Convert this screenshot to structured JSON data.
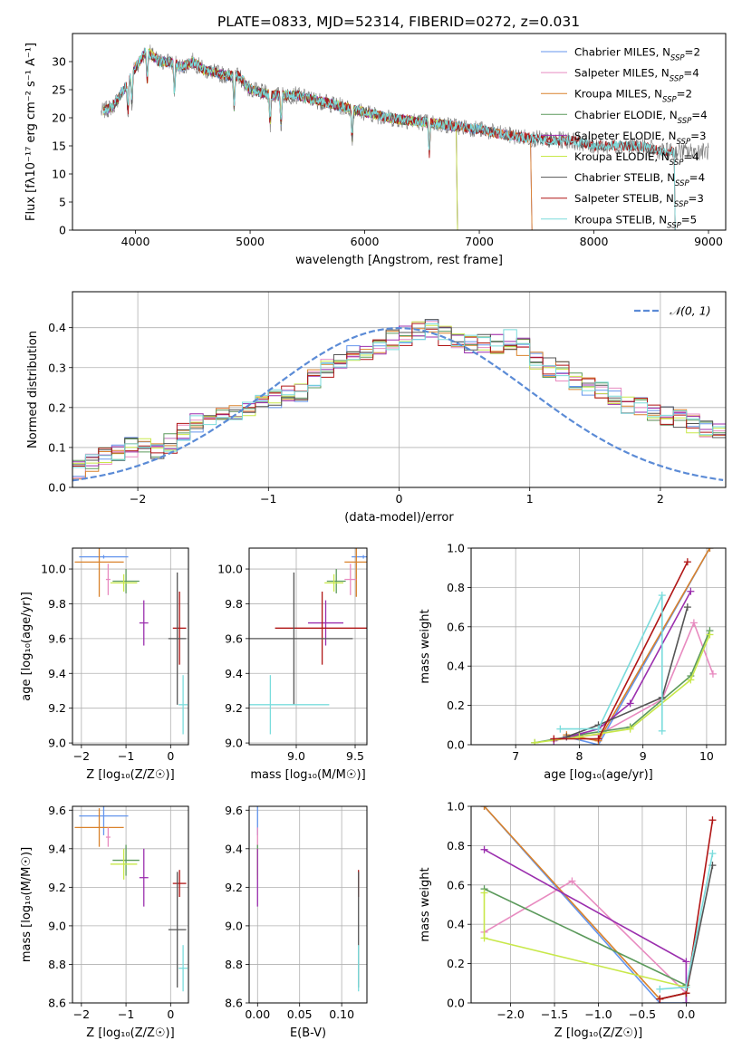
{
  "figure": {
    "title": "PLATE=0833, MJD=52314, FIBERID=0272, z=0.031"
  },
  "colors": {
    "Chabrier MILES": "#6495ed",
    "Salpeter MILES": "#e88bc0",
    "Kroupa MILES": "#d9822b",
    "Chabrier ELODIE": "#5c9a5c",
    "Salpeter ELODIE": "#9b2fae",
    "Kroupa ELODIE": "#c8e84a",
    "Chabrier STELIB": "#555555",
    "Salpeter STELIB": "#b01515",
    "Kroupa STELIB": "#7adcdc",
    "gaussian": "#5b8bd6"
  },
  "chart_data": [
    {
      "id": "spectrum",
      "type": "line",
      "xlabel": "wavelength [Angstrom, rest frame]",
      "ylabel": "Flux [fλ10⁻¹⁷ erg cm⁻² s⁻¹ A⁻¹]",
      "xlim": [
        3450,
        9150
      ],
      "ylim": [
        0,
        35
      ],
      "xticks": [
        4000,
        5000,
        6000,
        7000,
        8000,
        9000
      ],
      "yticks": [
        0,
        5,
        10,
        15,
        20,
        25,
        30
      ],
      "grid": false,
      "legend_position": "top-right",
      "observed": {
        "x": [
          3700,
          3800,
          3900,
          4000,
          4100,
          4200,
          4300,
          4400,
          4500,
          4600,
          4700,
          4800,
          4900,
          5000,
          5200,
          5400,
          5600,
          5800,
          6000,
          6200,
          6400,
          6600,
          6800,
          7000,
          7200,
          7400,
          7600,
          7800,
          8000,
          8200,
          8400,
          8600,
          8800,
          9000
        ],
        "y": [
          21,
          22,
          25,
          29,
          32,
          30,
          30,
          29,
          30,
          28.5,
          28,
          27.5,
          27.5,
          25,
          24,
          24,
          23,
          22,
          21,
          20,
          19.5,
          19,
          18.5,
          18,
          17,
          16.5,
          16,
          16,
          15,
          15,
          15,
          14,
          14,
          14
        ]
      },
      "series": [
        {
          "name": "Chabrier MILES",
          "nssp": "2",
          "end_x": 7450
        },
        {
          "name": "Salpeter MILES",
          "nssp": "4",
          "end_x": 7450
        },
        {
          "name": "Kroupa MILES",
          "nssp": "2",
          "end_x": 7450
        },
        {
          "name": "Chabrier ELODIE",
          "nssp": "4",
          "end_x": 6800
        },
        {
          "name": "Salpeter ELODIE",
          "nssp": "3",
          "end_x": 6800
        },
        {
          "name": "Kroupa ELODIE",
          "nssp": "4",
          "end_x": 6800
        },
        {
          "name": "Chabrier STELIB",
          "nssp": "4",
          "end_x": 8700
        },
        {
          "name": "Salpeter STELIB",
          "nssp": "3",
          "end_x": 8700
        },
        {
          "name": "Kroupa STELIB",
          "nssp": "5",
          "end_x": 8700
        }
      ]
    },
    {
      "id": "histogram",
      "type": "step",
      "xlabel": "(data-model)/error",
      "ylabel": "Normed distribution",
      "xlim": [
        -2.5,
        2.5
      ],
      "ylim": [
        0,
        0.49
      ],
      "xticks": [
        -2,
        -1,
        0,
        1,
        2
      ],
      "yticks": [
        0.0,
        0.1,
        0.2,
        0.3,
        0.4
      ],
      "grid": true,
      "legend_position": "top-right",
      "gaussian_label": "𝒩(0, 1)",
      "bin_edges_start": -2.5,
      "bin_width": 0.1,
      "mean_profile": [
        0.045,
        0.06,
        0.08,
        0.09,
        0.1,
        0.1,
        0.095,
        0.11,
        0.14,
        0.16,
        0.17,
        0.18,
        0.19,
        0.2,
        0.21,
        0.22,
        0.23,
        0.24,
        0.27,
        0.3,
        0.31,
        0.33,
        0.34,
        0.35,
        0.37,
        0.38,
        0.39,
        0.4,
        0.38,
        0.37,
        0.36,
        0.36,
        0.36,
        0.37,
        0.35,
        0.32,
        0.3,
        0.29,
        0.27,
        0.25,
        0.24,
        0.23,
        0.21,
        0.2,
        0.19,
        0.18,
        0.17,
        0.16,
        0.15,
        0.14,
        0.13,
        0.12,
        0.1,
        0.09,
        0.085,
        0.08,
        0.075,
        0.07,
        0.065,
        0.06,
        0.055,
        0.05,
        0.045,
        0.045,
        0.04,
        0.04,
        0.04,
        0.035,
        0.035,
        0.03,
        0.03,
        0.03,
        0.025,
        0.025,
        0.02,
        0.02,
        0.02,
        0.02,
        0.02,
        0.02
      ]
    },
    {
      "id": "age-vs-z",
      "type": "errorbar",
      "xlabel": "Z [log₁₀(Z/Z☉)]",
      "ylabel": "age  [log₁₀(age/yr)]",
      "xlim": [
        -2.2,
        0.4
      ],
      "ylim": [
        8.99,
        10.12
      ],
      "xticks": [
        -2,
        -1,
        0
      ],
      "yticks": [
        9.0,
        9.2,
        9.4,
        9.6,
        9.8,
        10.0
      ],
      "grid": true,
      "points": [
        {
          "series": "Chabrier MILES",
          "x": -1.5,
          "xerr": 0.55,
          "y": 10.07,
          "yerr": 0.01
        },
        {
          "series": "Kroupa MILES",
          "x": -1.6,
          "xerr": 0.55,
          "y": 10.04,
          "yerr": 0.2
        },
        {
          "series": "Salpeter MILES",
          "x": -1.4,
          "xerr": 0.05,
          "y": 9.94,
          "yerr": 0.09
        },
        {
          "series": "Chabrier ELODIE",
          "x": -1.0,
          "xerr": 0.3,
          "y": 9.93,
          "yerr": 0.07
        },
        {
          "series": "Kroupa ELODIE",
          "x": -1.05,
          "xerr": 0.3,
          "y": 9.92,
          "yerr": 0.05
        },
        {
          "series": "Salpeter ELODIE",
          "x": -0.6,
          "xerr": 0.1,
          "y": 9.69,
          "yerr": 0.13
        },
        {
          "series": "Salpeter STELIB",
          "x": 0.2,
          "xerr": 0.15,
          "y": 9.66,
          "yerr": 0.21
        },
        {
          "series": "Chabrier STELIB",
          "x": 0.15,
          "xerr": 0.2,
          "y": 9.6,
          "yerr": 0.38
        },
        {
          "series": "Kroupa STELIB",
          "x": 0.28,
          "xerr": 0.1,
          "y": 9.22,
          "yerr": 0.17
        }
      ]
    },
    {
      "id": "age-vs-mass",
      "type": "errorbar",
      "xlabel": "mass [log₁₀(M/M☉)]",
      "ylabel": "",
      "xlim": [
        8.6,
        9.6
      ],
      "ylim": [
        8.99,
        10.12
      ],
      "xticks": [
        9.0,
        9.5
      ],
      "yticks": [
        9.0,
        9.2,
        9.4,
        9.6,
        9.8,
        10.0
      ],
      "grid": true,
      "points": [
        {
          "series": "Chabrier MILES",
          "x": 9.57,
          "xerr": 0.1,
          "y": 10.07,
          "yerr": 0.01
        },
        {
          "series": "Kroupa MILES",
          "x": 9.51,
          "xerr": 0.1,
          "y": 10.04,
          "yerr": 0.2
        },
        {
          "series": "Salpeter MILES",
          "x": 9.46,
          "xerr": 0.05,
          "y": 9.94,
          "yerr": 0.09
        },
        {
          "series": "Chabrier ELODIE",
          "x": 9.34,
          "xerr": 0.08,
          "y": 9.93,
          "yerr": 0.07
        },
        {
          "series": "Kroupa ELODIE",
          "x": 9.32,
          "xerr": 0.08,
          "y": 9.92,
          "yerr": 0.05
        },
        {
          "series": "Salpeter ELODIE",
          "x": 9.25,
          "xerr": 0.15,
          "y": 9.69,
          "yerr": 0.13
        },
        {
          "series": "Salpeter STELIB",
          "x": 9.22,
          "xerr": 0.4,
          "y": 9.66,
          "yerr": 0.21
        },
        {
          "series": "Chabrier STELIB",
          "x": 8.98,
          "xerr": 0.5,
          "y": 9.6,
          "yerr": 0.38
        },
        {
          "series": "Kroupa STELIB",
          "x": 8.78,
          "xerr": 0.5,
          "y": 9.22,
          "yerr": 0.17
        }
      ]
    },
    {
      "id": "mass-weight-vs-age",
      "type": "line",
      "xlabel": "age  [log₁₀(age/yr)]",
      "ylabel": "mass weight",
      "xlim": [
        6.3,
        10.3
      ],
      "ylim": [
        0,
        1
      ],
      "xticks": [
        7,
        8,
        9,
        10
      ],
      "yticks": [
        0.0,
        0.2,
        0.4,
        0.6,
        0.8,
        1.0
      ],
      "grid": true,
      "series": [
        {
          "name": "Chabrier MILES",
          "x": [
            7.8,
            8.3,
            10.05
          ],
          "y": [
            0.04,
            0.0,
            1.0
          ]
        },
        {
          "name": "Salpeter MILES",
          "x": [
            7.8,
            8.3,
            9.3,
            9.8,
            10.1
          ],
          "y": [
            0.04,
            0.05,
            0.23,
            0.62,
            0.36
          ]
        },
        {
          "name": "Kroupa MILES",
          "x": [
            7.8,
            8.3,
            10.05
          ],
          "y": [
            0.05,
            0.02,
            1.0
          ]
        },
        {
          "name": "Chabrier ELODIE",
          "x": [
            7.3,
            8.0,
            8.8,
            9.75,
            10.05
          ],
          "y": [
            0.01,
            0.05,
            0.09,
            0.35,
            0.58
          ]
        },
        {
          "name": "Salpeter ELODIE",
          "x": [
            7.6,
            8.3,
            8.8,
            9.75
          ],
          "y": [
            0.02,
            0.08,
            0.21,
            0.78
          ]
        },
        {
          "name": "Kroupa ELODIE",
          "x": [
            7.3,
            8.0,
            8.8,
            9.75,
            10.05
          ],
          "y": [
            0.01,
            0.04,
            0.08,
            0.33,
            0.56
          ]
        },
        {
          "name": "Chabrier STELIB",
          "x": [
            7.8,
            8.3,
            9.3,
            9.7
          ],
          "y": [
            0.04,
            0.1,
            0.24,
            0.7
          ]
        },
        {
          "name": "Salpeter STELIB",
          "x": [
            7.6,
            8.3,
            9.7
          ],
          "y": [
            0.03,
            0.03,
            0.93
          ]
        },
        {
          "name": "Kroupa STELIB",
          "x": [
            7.7,
            8.3,
            9.3,
            9.3
          ],
          "y": [
            0.08,
            0.08,
            0.76,
            0.07
          ]
        }
      ]
    },
    {
      "id": "mass-vs-z",
      "type": "errorbar",
      "xlabel": "Z [log₁₀(Z/Z☉)]",
      "ylabel": "mass [log₁₀(M/M☉)]",
      "xlim": [
        -2.2,
        0.4
      ],
      "ylim": [
        8.6,
        9.62
      ],
      "xticks": [
        -2,
        -1,
        0
      ],
      "yticks": [
        8.6,
        8.8,
        9.0,
        9.2,
        9.4,
        9.6
      ],
      "grid": true,
      "points": [
        {
          "series": "Chabrier MILES",
          "x": -1.5,
          "xerr": 0.55,
          "y": 9.57,
          "yerr": 0.1
        },
        {
          "series": "Kroupa MILES",
          "x": -1.6,
          "xerr": 0.55,
          "y": 9.51,
          "yerr": 0.1
        },
        {
          "series": "Salpeter MILES",
          "x": -1.4,
          "xerr": 0.05,
          "y": 9.46,
          "yerr": 0.05
        },
        {
          "series": "Chabrier ELODIE",
          "x": -1.0,
          "xerr": 0.3,
          "y": 9.34,
          "yerr": 0.08
        },
        {
          "series": "Kroupa ELODIE",
          "x": -1.05,
          "xerr": 0.3,
          "y": 9.32,
          "yerr": 0.08
        },
        {
          "series": "Salpeter ELODIE",
          "x": -0.6,
          "xerr": 0.1,
          "y": 9.25,
          "yerr": 0.15
        },
        {
          "series": "Salpeter STELIB",
          "x": 0.2,
          "xerr": 0.15,
          "y": 9.22,
          "yerr": 0.07
        },
        {
          "series": "Chabrier STELIB",
          "x": 0.15,
          "xerr": 0.2,
          "y": 8.98,
          "yerr": 0.3
        },
        {
          "series": "Kroupa STELIB",
          "x": 0.28,
          "xerr": 0.1,
          "y": 8.78,
          "yerr": 0.12
        }
      ]
    },
    {
      "id": "mass-vs-ebv",
      "type": "errorbar",
      "xlabel": "E(B-V)",
      "ylabel": "",
      "xlim": [
        -0.01,
        0.13
      ],
      "ylim": [
        8.6,
        9.62
      ],
      "xticks": [
        0.0,
        0.05,
        0.1
      ],
      "yticks": [
        8.6,
        8.8,
        9.0,
        9.2,
        9.4,
        9.6
      ],
      "grid": true,
      "points": [
        {
          "series": "Chabrier MILES",
          "x": 0.0,
          "xerr": 0.0,
          "y": 9.57,
          "yerr": 0.1
        },
        {
          "series": "Salpeter MILES",
          "x": 0.0,
          "xerr": 0.0,
          "y": 9.46,
          "yerr": 0.05
        },
        {
          "series": "Chabrier ELODIE",
          "x": 0.0,
          "xerr": 0.0,
          "y": 9.34,
          "yerr": 0.08
        },
        {
          "series": "Kroupa ELODIE",
          "x": 0.0,
          "xerr": 0.0,
          "y": 9.32,
          "yerr": 0.08
        },
        {
          "series": "Salpeter ELODIE",
          "x": 0.0,
          "xerr": 0.0,
          "y": 9.25,
          "yerr": 0.15
        },
        {
          "series": "Salpeter STELIB",
          "x": 0.12,
          "xerr": 0.0,
          "y": 9.22,
          "yerr": 0.07
        },
        {
          "series": "Chabrier STELIB",
          "x": 0.12,
          "xerr": 0.0,
          "y": 8.98,
          "yerr": 0.3
        },
        {
          "series": "Kroupa STELIB",
          "x": 0.12,
          "xerr": 0.0,
          "y": 8.78,
          "yerr": 0.12
        }
      ]
    },
    {
      "id": "mass-weight-vs-z",
      "type": "line",
      "xlabel": "Z [log₁₀(Z/Z☉)]",
      "ylabel": "mass weight",
      "xlim": [
        -2.45,
        0.45
      ],
      "ylim": [
        0,
        1
      ],
      "xticks": [
        -2.0,
        -1.5,
        -1.0,
        -0.5,
        0.0
      ],
      "yticks": [
        0.0,
        0.2,
        0.4,
        0.6,
        0.8,
        1.0
      ],
      "grid": true,
      "series": [
        {
          "name": "Chabrier MILES",
          "x": [
            -2.3,
            -0.3,
            0.0
          ],
          "y": [
            1.0,
            0.0,
            0.0
          ]
        },
        {
          "name": "Salpeter MILES",
          "x": [
            -2.3,
            -1.3,
            0.0
          ],
          "y": [
            0.36,
            0.62,
            0.05
          ]
        },
        {
          "name": "Kroupa MILES",
          "x": [
            -2.3,
            -0.3,
            0.0
          ],
          "y": [
            1.0,
            0.02,
            0.05
          ]
        },
        {
          "name": "Chabrier ELODIE",
          "x": [
            -2.3,
            0.0,
            0.0
          ],
          "y": [
            0.58,
            0.09,
            0.0
          ]
        },
        {
          "name": "Salpeter ELODIE",
          "x": [
            -2.3,
            0.0,
            0.0
          ],
          "y": [
            0.78,
            0.21,
            0.0
          ]
        },
        {
          "name": "Kroupa ELODIE",
          "x": [
            -2.3,
            -2.3,
            0.0
          ],
          "y": [
            0.56,
            0.33,
            0.08
          ]
        },
        {
          "name": "Chabrier STELIB",
          "x": [
            -0.3,
            0.0,
            0.3
          ],
          "y": [
            0.02,
            0.05,
            0.7
          ]
        },
        {
          "name": "Salpeter STELIB",
          "x": [
            -0.3,
            0.0,
            0.3
          ],
          "y": [
            0.02,
            0.05,
            0.93
          ]
        },
        {
          "name": "Kroupa STELIB",
          "x": [
            -0.3,
            0.0,
            0.3
          ],
          "y": [
            0.07,
            0.08,
            0.76
          ]
        }
      ]
    }
  ]
}
